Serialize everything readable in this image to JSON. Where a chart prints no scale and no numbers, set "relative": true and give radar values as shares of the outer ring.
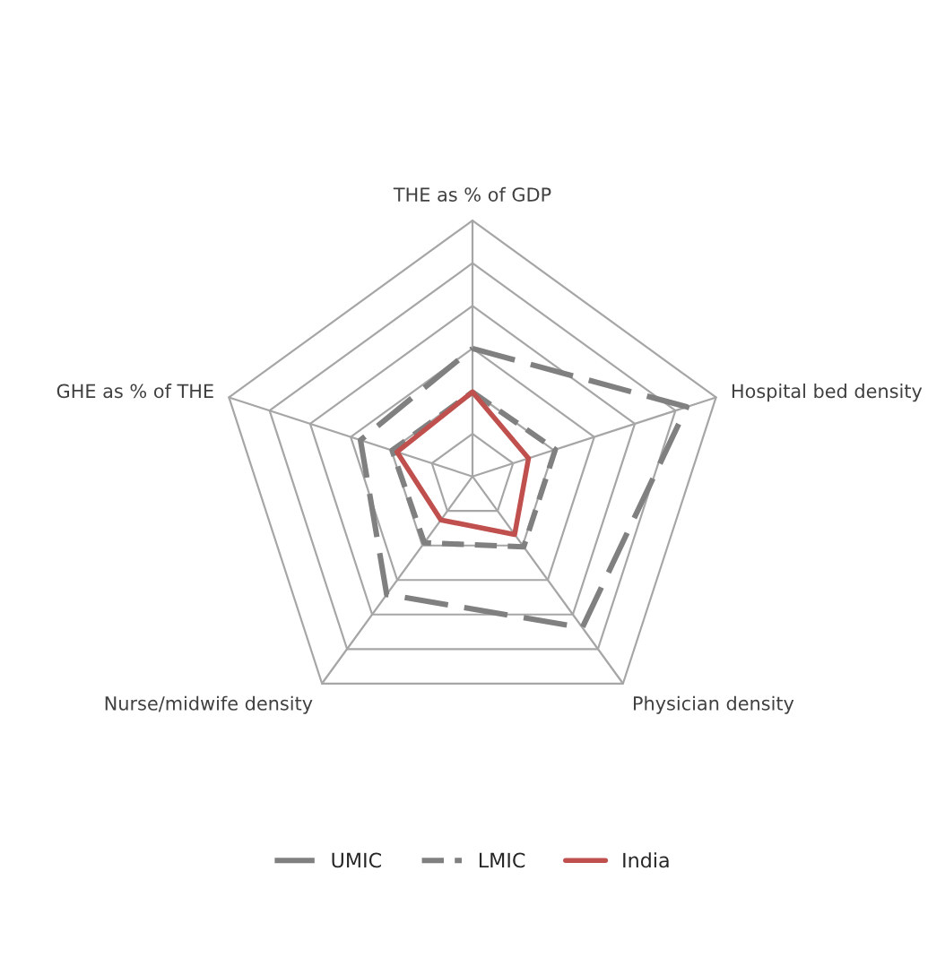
{
  "chart_data": {
    "type": "radar",
    "relative": true,
    "grid": true,
    "legend": "bottom",
    "categories": [
      "THE as % of GDP",
      "Hospital bed density",
      "Physician density",
      "Nurse/midwife density",
      "GHE as % of THE"
    ],
    "series": [
      {
        "name": "UMIC",
        "color": "#808080",
        "line_style": "long_dashed",
        "values": [
          0.5,
          0.88,
          0.73,
          0.57,
          0.46
        ]
      },
      {
        "name": "LMIC",
        "color": "#808080",
        "line_style": "dashed",
        "values": [
          0.33,
          0.34,
          0.34,
          0.32,
          0.33
        ]
      },
      {
        "name": "India",
        "color": "#c0504d",
        "line_style": "solid",
        "values": [
          0.33,
          0.23,
          0.28,
          0.21,
          0.31
        ]
      }
    ]
  }
}
